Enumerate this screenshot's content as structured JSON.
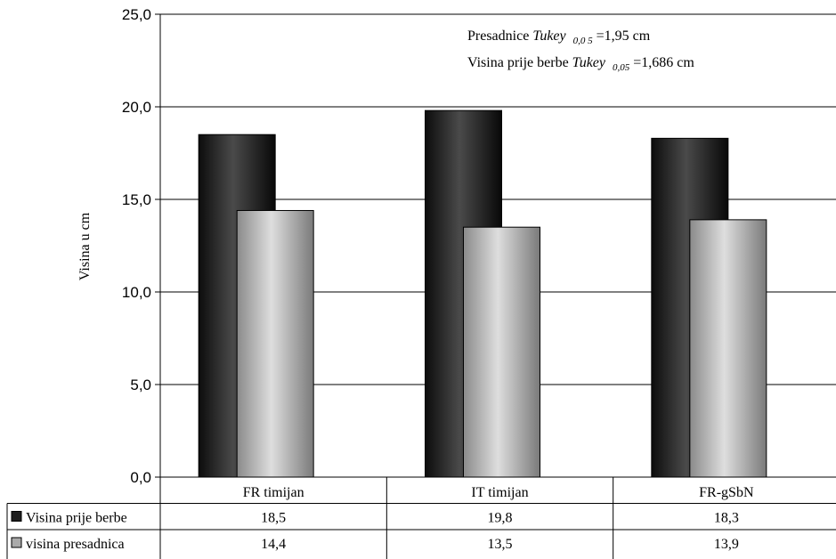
{
  "chart_data": {
    "type": "bar",
    "ylabel": "Visina u cm",
    "ylim": [
      0,
      25
    ],
    "yticks": [
      "0,0",
      "5,0",
      "10,0",
      "15,0",
      "20,0",
      "25,0"
    ],
    "categories": [
      "FR timijan",
      "IT timijan",
      "FR-gSbN"
    ],
    "series": [
      {
        "name": "Visina prije berbe",
        "values": [
          18.5,
          19.8,
          18.3
        ],
        "labels": [
          "18,5",
          "19,8",
          "18,3"
        ],
        "color": "#1e1e1e"
      },
      {
        "name": "visina presadnica",
        "values": [
          14.4,
          13.5,
          13.9
        ],
        "labels": [
          "14,4",
          "13,5",
          "13,9"
        ],
        "color": "#aaaaaa"
      }
    ],
    "grid": true,
    "legend": "data-table",
    "annotations": {
      "line1": {
        "pre": "Presadnice ",
        "italic": "Tukey",
        "sub": "0,0 5",
        "post": " =1,95 cm"
      },
      "line2": {
        "pre": "Visina prije berbe ",
        "italic": "Tukey",
        "sub": "0,05",
        "post": " =1,686 cm"
      }
    }
  }
}
